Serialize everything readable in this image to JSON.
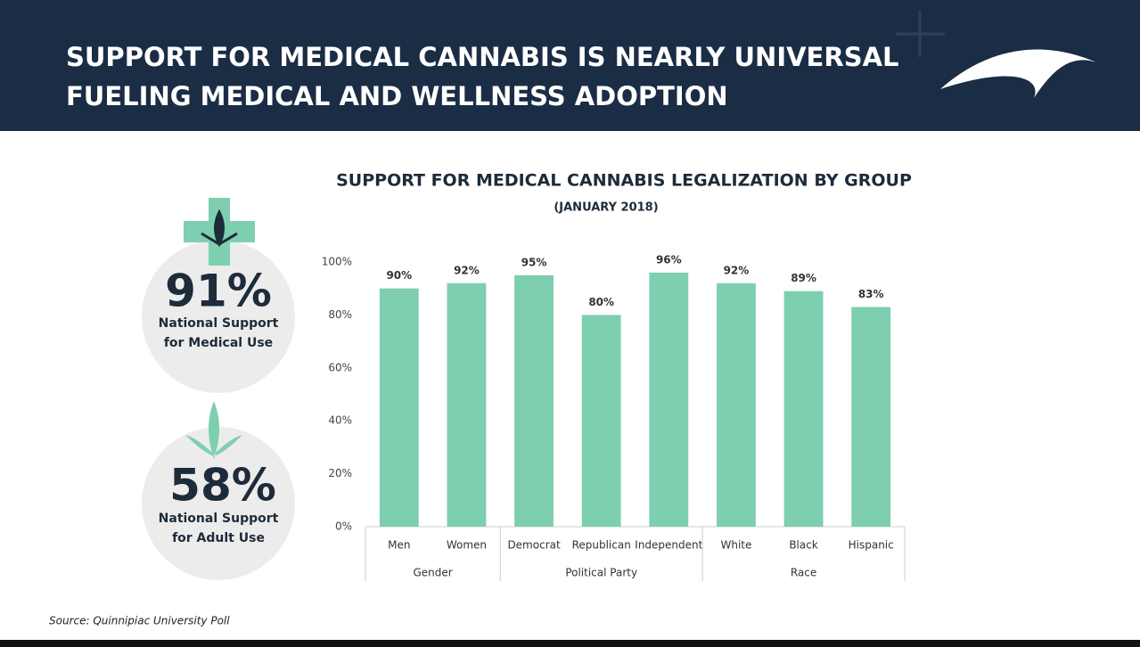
{
  "header": {
    "title": [
      "SUPPORT FOR MEDICAL CANNABIS IS NEARLY UNIVERSAL",
      "FUELING MEDICAL AND WELLNESS ADOPTION"
    ]
  },
  "stats": [
    {
      "value": "91%",
      "label": [
        "National Support",
        "for Medical Use"
      ]
    },
    {
      "value": "58%",
      "label": [
        "National Support",
        "for Adult Use"
      ]
    }
  ],
  "chart_data": {
    "type": "bar",
    "title": "SUPPORT FOR MEDICAL CANNABIS LEGALIZATION BY GROUP",
    "subtitle": "(JANUARY 2018)",
    "categories": [
      "Men",
      "Women",
      "Democrat",
      "Republican",
      "Independent",
      "White",
      "Black",
      "Hispanic"
    ],
    "category_groups": [
      "Gender",
      "Gender",
      "Political Party",
      "Political Party",
      "Political Party",
      "Race",
      "Race",
      "Race"
    ],
    "values": [
      90,
      92,
      95,
      80,
      96,
      92,
      89,
      83
    ],
    "value_labels": [
      "90%",
      "92%",
      "95%",
      "80%",
      "96%",
      "92%",
      "89%",
      "83%"
    ],
    "color": "#7ecfb0",
    "ylim": [
      0,
      100
    ],
    "yticks": [
      {
        "value": 0,
        "label": "0%"
      },
      {
        "value": 20,
        "label": "20%"
      },
      {
        "value": 40,
        "label": "40%"
      },
      {
        "value": 60,
        "label": "60%"
      },
      {
        "value": 80,
        "label": "80%"
      },
      {
        "value": 100,
        "label": "100%"
      }
    ],
    "grid": false
  },
  "source": "Source: Quinnipiac University Poll"
}
